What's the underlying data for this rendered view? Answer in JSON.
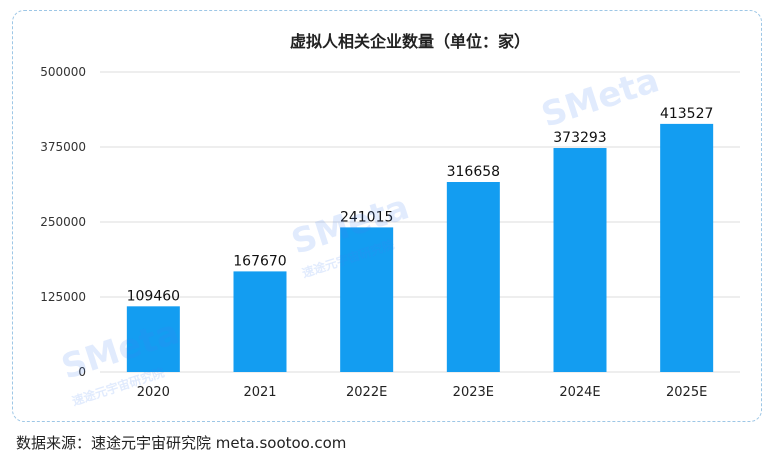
{
  "chart_data": {
    "type": "bar",
    "title": "虚拟人相关企业数量（单位：家）",
    "categories": [
      "2020",
      "2021",
      "2022E",
      "2023E",
      "2024E",
      "2025E"
    ],
    "values": [
      109460,
      167670,
      241015,
      316658,
      373293,
      413527
    ],
    "data_labels": [
      "109460",
      "167670",
      "241015",
      "316658",
      "373293",
      "413527"
    ],
    "y_ticks": [
      0,
      125000,
      250000,
      375000,
      500000
    ],
    "y_tick_labels": [
      "0",
      "125000",
      "250000",
      "375000",
      "500000"
    ],
    "ylim": [
      0,
      500000
    ],
    "grid": true,
    "bar_color": "#139df1"
  },
  "source": "数据来源：速途元宇宙研究院 meta.sootoo.com",
  "watermark": {
    "brand": "SMeta",
    "org": "速途元宇宙研究院"
  }
}
